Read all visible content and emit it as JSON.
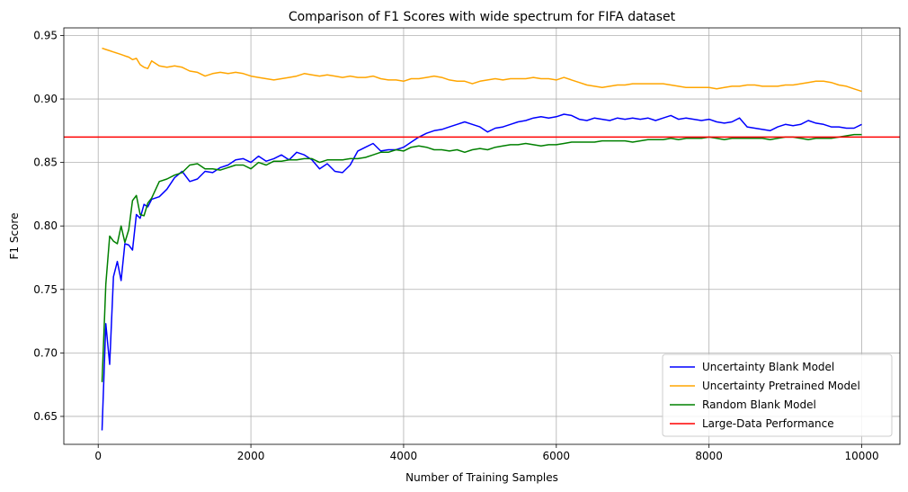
{
  "chart_data": {
    "type": "line",
    "title": "Comparison of F1 Scores with wide spectrum for FIFA dataset",
    "xlabel": "Number of Training Samples",
    "ylabel": "F1 Score",
    "xlim": [
      -450,
      10500
    ],
    "ylim": [
      0.628,
      0.956
    ],
    "xticks": [
      0,
      2000,
      4000,
      6000,
      8000,
      10000
    ],
    "yticks": [
      0.65,
      0.7,
      0.75,
      0.8,
      0.85,
      0.9,
      0.95
    ],
    "ytick_labels": [
      "0.65",
      "0.70",
      "0.75",
      "0.80",
      "0.85",
      "0.90",
      "0.95"
    ],
    "grid": true,
    "legend_position": "lower-right",
    "series": [
      {
        "name": "Uncertainty Blank Model",
        "color": "#0000ff",
        "x": [
          50,
          100,
          150,
          200,
          250,
          300,
          350,
          400,
          450,
          500,
          550,
          600,
          650,
          700,
          800,
          900,
          1000,
          1100,
          1200,
          1300,
          1400,
          1500,
          1600,
          1700,
          1800,
          1900,
          2000,
          2100,
          2200,
          2300,
          2400,
          2500,
          2600,
          2700,
          2800,
          2900,
          3000,
          3100,
          3200,
          3300,
          3400,
          3500,
          3600,
          3700,
          3800,
          3900,
          4000,
          4100,
          4200,
          4300,
          4400,
          4500,
          4600,
          4700,
          4800,
          4900,
          5000,
          5100,
          5200,
          5300,
          5400,
          5500,
          5600,
          5700,
          5800,
          5900,
          6000,
          6100,
          6200,
          6300,
          6400,
          6500,
          6600,
          6700,
          6800,
          6900,
          7000,
          7100,
          7200,
          7300,
          7400,
          7500,
          7600,
          7700,
          7800,
          7900,
          8000,
          8100,
          8200,
          8300,
          8400,
          8500,
          8600,
          8700,
          8800,
          8900,
          9000,
          9100,
          9200,
          9300,
          9400,
          9500,
          9600,
          9700,
          9800,
          9900,
          10000
        ],
        "y": [
          0.639,
          0.723,
          0.691,
          0.76,
          0.772,
          0.757,
          0.786,
          0.785,
          0.781,
          0.809,
          0.806,
          0.817,
          0.815,
          0.821,
          0.823,
          0.829,
          0.838,
          0.843,
          0.835,
          0.837,
          0.843,
          0.842,
          0.846,
          0.848,
          0.852,
          0.853,
          0.85,
          0.855,
          0.851,
          0.853,
          0.856,
          0.852,
          0.858,
          0.856,
          0.852,
          0.845,
          0.849,
          0.843,
          0.842,
          0.848,
          0.859,
          0.862,
          0.865,
          0.859,
          0.86,
          0.86,
          0.862,
          0.866,
          0.87,
          0.873,
          0.875,
          0.876,
          0.878,
          0.88,
          0.882,
          0.88,
          0.878,
          0.874,
          0.877,
          0.878,
          0.88,
          0.882,
          0.883,
          0.885,
          0.886,
          0.885,
          0.886,
          0.888,
          0.887,
          0.884,
          0.883,
          0.885,
          0.884,
          0.883,
          0.885,
          0.884,
          0.885,
          0.884,
          0.885,
          0.883,
          0.885,
          0.887,
          0.884,
          0.885,
          0.884,
          0.883,
          0.884,
          0.882,
          0.881,
          0.882,
          0.885,
          0.878,
          0.877,
          0.876,
          0.875,
          0.878,
          0.88,
          0.879,
          0.88,
          0.883,
          0.881,
          0.88,
          0.878,
          0.878,
          0.877,
          0.877,
          0.88
        ]
      },
      {
        "name": "Uncertainty Pretrained Model",
        "color": "#ffa500",
        "x": [
          50,
          100,
          150,
          200,
          250,
          300,
          350,
          400,
          450,
          500,
          550,
          600,
          650,
          700,
          800,
          900,
          1000,
          1100,
          1200,
          1300,
          1400,
          1500,
          1600,
          1700,
          1800,
          1900,
          2000,
          2100,
          2200,
          2300,
          2400,
          2500,
          2600,
          2700,
          2800,
          2900,
          3000,
          3100,
          3200,
          3300,
          3400,
          3500,
          3600,
          3700,
          3800,
          3900,
          4000,
          4100,
          4200,
          4300,
          4400,
          4500,
          4600,
          4700,
          4800,
          4900,
          5000,
          5100,
          5200,
          5300,
          5400,
          5500,
          5600,
          5700,
          5800,
          5900,
          6000,
          6100,
          6200,
          6300,
          6400,
          6500,
          6600,
          6700,
          6800,
          6900,
          7000,
          7100,
          7200,
          7300,
          7400,
          7500,
          7600,
          7700,
          7800,
          7900,
          8000,
          8100,
          8200,
          8300,
          8400,
          8500,
          8600,
          8700,
          8800,
          8900,
          9000,
          9100,
          9200,
          9300,
          9400,
          9500,
          9600,
          9700,
          9800,
          9900,
          10000
        ],
        "y": [
          0.94,
          0.939,
          0.938,
          0.937,
          0.936,
          0.935,
          0.934,
          0.933,
          0.931,
          0.932,
          0.927,
          0.925,
          0.924,
          0.93,
          0.926,
          0.925,
          0.926,
          0.925,
          0.922,
          0.921,
          0.918,
          0.92,
          0.921,
          0.92,
          0.921,
          0.92,
          0.918,
          0.917,
          0.916,
          0.915,
          0.916,
          0.917,
          0.918,
          0.92,
          0.919,
          0.918,
          0.919,
          0.918,
          0.917,
          0.918,
          0.917,
          0.917,
          0.918,
          0.916,
          0.915,
          0.915,
          0.914,
          0.916,
          0.916,
          0.917,
          0.918,
          0.917,
          0.915,
          0.914,
          0.914,
          0.912,
          0.914,
          0.915,
          0.916,
          0.915,
          0.916,
          0.916,
          0.916,
          0.917,
          0.916,
          0.916,
          0.915,
          0.917,
          0.915,
          0.913,
          0.911,
          0.91,
          0.909,
          0.91,
          0.911,
          0.911,
          0.912,
          0.912,
          0.912,
          0.912,
          0.912,
          0.911,
          0.91,
          0.909,
          0.909,
          0.909,
          0.909,
          0.908,
          0.909,
          0.91,
          0.91,
          0.911,
          0.911,
          0.91,
          0.91,
          0.91,
          0.911,
          0.911,
          0.912,
          0.913,
          0.914,
          0.914,
          0.913,
          0.911,
          0.91,
          0.908,
          0.906
        ]
      },
      {
        "name": "Random Blank Model",
        "color": "#008000",
        "x": [
          50,
          100,
          150,
          200,
          250,
          300,
          350,
          400,
          450,
          500,
          550,
          600,
          650,
          700,
          800,
          900,
          1000,
          1100,
          1200,
          1300,
          1400,
          1500,
          1600,
          1700,
          1800,
          1900,
          2000,
          2100,
          2200,
          2300,
          2400,
          2500,
          2600,
          2700,
          2800,
          2900,
          3000,
          3100,
          3200,
          3300,
          3400,
          3500,
          3600,
          3700,
          3800,
          3900,
          4000,
          4100,
          4200,
          4300,
          4400,
          4500,
          4600,
          4700,
          4800,
          4900,
          5000,
          5100,
          5200,
          5300,
          5400,
          5500,
          5600,
          5700,
          5800,
          5900,
          6000,
          6100,
          6200,
          6300,
          6400,
          6500,
          6600,
          6700,
          6800,
          6900,
          7000,
          7100,
          7200,
          7300,
          7400,
          7500,
          7600,
          7700,
          7800,
          7900,
          8000,
          8100,
          8200,
          8300,
          8400,
          8500,
          8600,
          8700,
          8800,
          8900,
          9000,
          9100,
          9200,
          9300,
          9400,
          9500,
          9600,
          9700,
          9800,
          9900,
          10000
        ],
        "y": [
          0.677,
          0.754,
          0.792,
          0.788,
          0.786,
          0.8,
          0.787,
          0.797,
          0.82,
          0.824,
          0.809,
          0.808,
          0.818,
          0.822,
          0.835,
          0.837,
          0.84,
          0.842,
          0.848,
          0.849,
          0.845,
          0.845,
          0.844,
          0.846,
          0.848,
          0.848,
          0.845,
          0.85,
          0.848,
          0.851,
          0.851,
          0.852,
          0.852,
          0.853,
          0.853,
          0.85,
          0.852,
          0.852,
          0.852,
          0.853,
          0.853,
          0.854,
          0.856,
          0.858,
          0.858,
          0.86,
          0.859,
          0.862,
          0.863,
          0.862,
          0.86,
          0.86,
          0.859,
          0.86,
          0.858,
          0.86,
          0.861,
          0.86,
          0.862,
          0.863,
          0.864,
          0.864,
          0.865,
          0.864,
          0.863,
          0.864,
          0.864,
          0.865,
          0.866,
          0.866,
          0.866,
          0.866,
          0.867,
          0.867,
          0.867,
          0.867,
          0.866,
          0.867,
          0.868,
          0.868,
          0.868,
          0.869,
          0.868,
          0.869,
          0.869,
          0.869,
          0.87,
          0.869,
          0.868,
          0.869,
          0.869,
          0.869,
          0.869,
          0.869,
          0.868,
          0.869,
          0.87,
          0.87,
          0.869,
          0.868,
          0.869,
          0.869,
          0.869,
          0.87,
          0.871,
          0.872,
          0.872
        ]
      },
      {
        "name": "Large-Data Performance",
        "color": "#ff0000",
        "hline": 0.87
      }
    ]
  }
}
